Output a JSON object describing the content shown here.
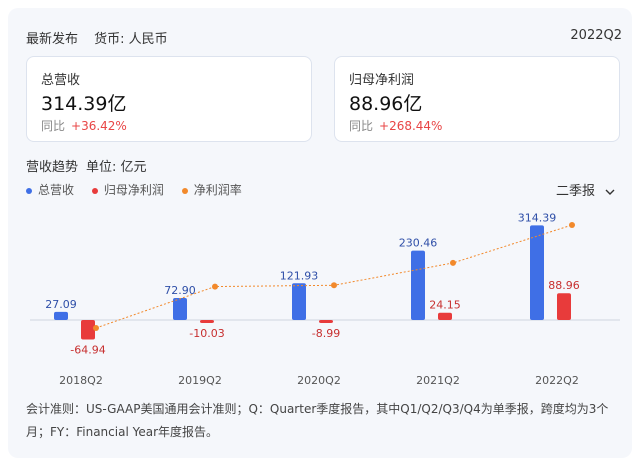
{
  "header": {
    "release": "最新发布",
    "currency_label": "货币: 人民币",
    "period": "2022Q2"
  },
  "cards": [
    {
      "label": "总营收",
      "value": "314.39亿",
      "yoy_label": "同比",
      "yoy_value": "+36.42%"
    },
    {
      "label": "归母净利润",
      "value": "88.96亿",
      "yoy_label": "同比",
      "yoy_value": "+268.44%"
    }
  ],
  "section": {
    "title": "营收趋势",
    "unit": "单位: 亿元",
    "period_select": "二季报"
  },
  "colors": {
    "revenue": "#3f6fe6",
    "profit": "#e83b3b",
    "margin": "#f2892b",
    "positive_text": "#e84545"
  },
  "chart_data": {
    "type": "bar",
    "categories": [
      "2018Q2",
      "2019Q2",
      "2020Q2",
      "2021Q2",
      "2022Q2"
    ],
    "series": [
      {
        "name": "总营收",
        "type": "bar",
        "values": [
          27.09,
          72.9,
          121.93,
          230.46,
          314.39
        ],
        "labels": [
          "27.09",
          "72.90",
          "121.93",
          "230.46",
          "314.39"
        ]
      },
      {
        "name": "归母净利润",
        "type": "bar",
        "values": [
          -64.94,
          -10.03,
          -8.99,
          24.15,
          88.96
        ],
        "labels": [
          "-64.94",
          "-10.03",
          "-8.99",
          "24.15",
          "88.96"
        ]
      },
      {
        "name": "净利润率",
        "type": "line",
        "values": [
          -240,
          -14,
          -7,
          10,
          28
        ]
      }
    ],
    "legend_position": "top-left",
    "grid": false
  },
  "footnote": "会计准则：US-GAAP美国通用会计准则；Q：Quarter季度报告，其中Q1/Q2/Q3/Q4为单季报，跨度均为3个月；FY：Financial Year年度报告。"
}
